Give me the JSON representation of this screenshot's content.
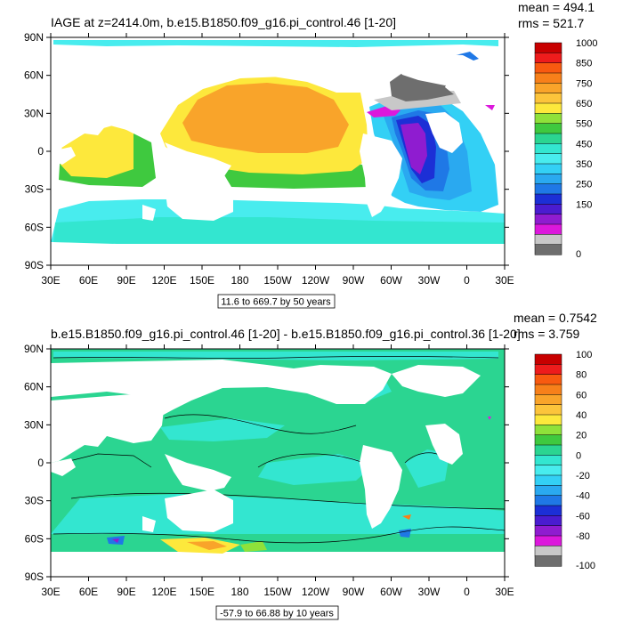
{
  "chart_data": [
    {
      "type": "heatmap",
      "title": "IAGE at z=2414.0m, b.e15.B1850.f09_g16.pi_control.46 [1-20]",
      "stats": {
        "mean": "mean = 494.1",
        "rms": "rms = 521.7"
      },
      "range_label": "11.6 to 669.7 by 50 years",
      "x_ticks": [
        "30E",
        "60E",
        "90E",
        "120E",
        "150E",
        "180",
        "150W",
        "120W",
        "90W",
        "60W",
        "30W",
        "0",
        "30E"
      ],
      "y_ticks": [
        "90N",
        "60N",
        "30N",
        "0",
        "30S",
        "60S",
        "90S"
      ],
      "xlim": [
        30,
        390
      ],
      "ylim": [
        -90,
        90
      ],
      "colorbar": {
        "labels": [
          "1000",
          "850",
          "750",
          "650",
          "550",
          "450",
          "350",
          "250",
          "150",
          "0"
        ],
        "colors": [
          "#c80000",
          "#ee1c1c",
          "#f85a10",
          "#f7801a",
          "#f9a42a",
          "#fcc43b",
          "#fde83c",
          "#8fe13a",
          "#3fc93f",
          "#2bd591",
          "#33e6d0",
          "#48ecee",
          "#33d0f5",
          "#2aa9f0",
          "#1f78e6",
          "#1c2fd6",
          "#4a1cd0",
          "#8f1cd0",
          "#dc18dc",
          "#c8c8c8",
          "#6e6e6e"
        ]
      }
    },
    {
      "type": "heatmap",
      "title": "b.e15.B1850.f09_g16.pi_control.46 [1-20] - b.e15.B1850.f09_g16.pi_control.36 [1-20]",
      "stats": {
        "mean": "mean = 0.7542",
        "rms": "rms = 3.759"
      },
      "range_label": "-57.9 to 66.88 by 10 years",
      "x_ticks": [
        "30E",
        "60E",
        "90E",
        "120E",
        "150E",
        "180",
        "150W",
        "120W",
        "90W",
        "60W",
        "30W",
        "0",
        "30E"
      ],
      "y_ticks": [
        "90N",
        "60N",
        "30N",
        "0",
        "30S",
        "60S",
        "90S"
      ],
      "xlim": [
        30,
        390
      ],
      "ylim": [
        -90,
        90
      ],
      "colorbar": {
        "labels": [
          "100",
          "80",
          "60",
          "40",
          "20",
          "0",
          "-20",
          "-40",
          "-60",
          "-80",
          "-100"
        ],
        "colors": [
          "#c80000",
          "#ee1c1c",
          "#f85a10",
          "#f7801a",
          "#f9a42a",
          "#fcc43b",
          "#fde83c",
          "#8fe13a",
          "#3fc93f",
          "#2bd591",
          "#33e6d0",
          "#48ecee",
          "#33d0f5",
          "#2aa9f0",
          "#1f78e6",
          "#1c2fd6",
          "#4a1cd0",
          "#8f1cd0",
          "#dc18dc",
          "#c8c8c8",
          "#6e6e6e"
        ]
      }
    }
  ]
}
